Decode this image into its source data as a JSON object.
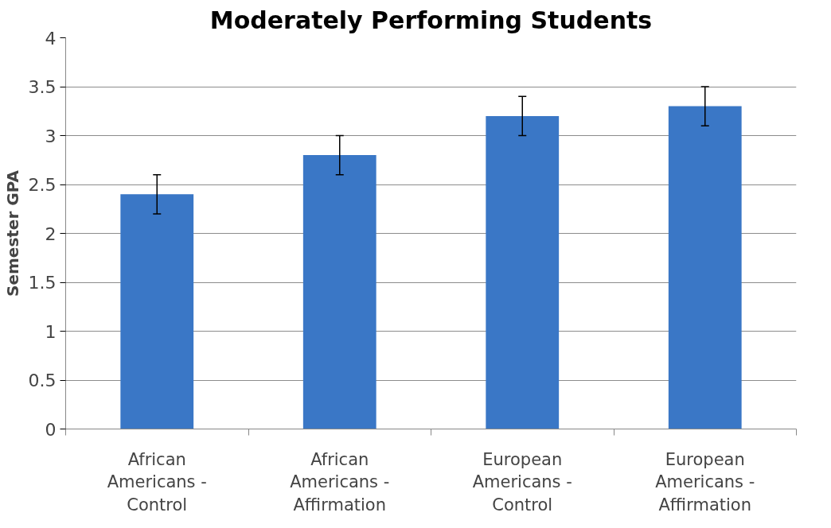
{
  "chart_data": {
    "type": "bar",
    "title": "Moderately Performing Students",
    "ylabel": "Semester GPA",
    "categories": [
      "African Americans - Control",
      "African Americans - Affirmation",
      "European Americans - Control",
      "European Americans - Affirmation"
    ],
    "values": [
      2.4,
      2.8,
      3.2,
      3.3
    ],
    "errors": [
      0.2,
      0.2,
      0.2,
      0.2
    ],
    "color": "#3a77c6",
    "ylim": [
      0,
      4
    ],
    "yticks": [
      0,
      0.5,
      1,
      1.5,
      2,
      2.5,
      3,
      3.5,
      4
    ],
    "grid": "y"
  }
}
